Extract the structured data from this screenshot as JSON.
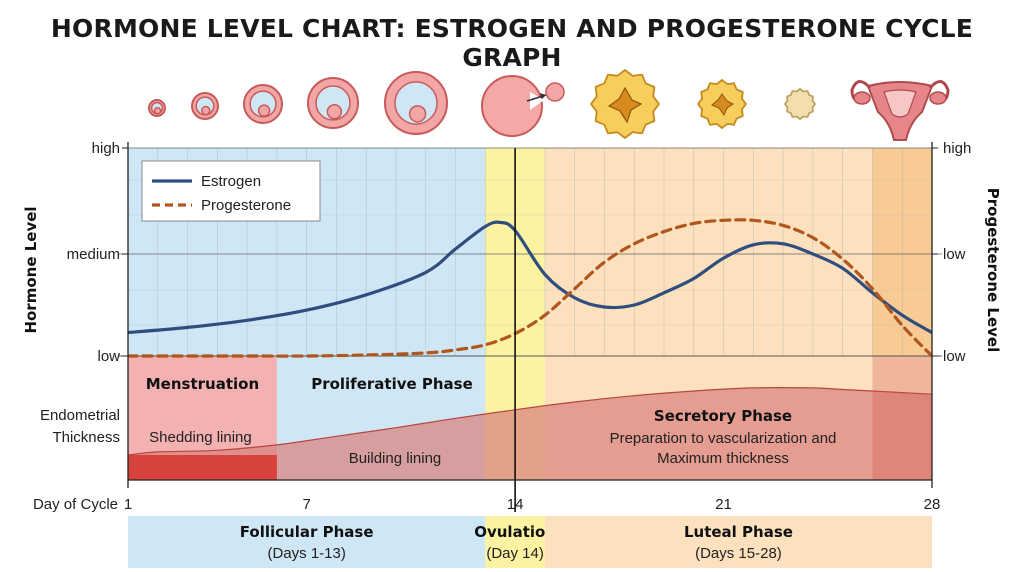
{
  "title": "HORMONE LEVEL CHART: ESTROGEN AND PROGESTERONE CYCLE GRAPH",
  "chart_data": {
    "type": "line",
    "title": "HORMONE LEVEL CHART: ESTROGEN AND PROGESTERONE CYCLE GRAPH",
    "xlabel": "Day of Cycle",
    "ylabel_left": "Hormone Level",
    "ylabel_right": "Progesterone Level",
    "xlim": [
      1,
      28
    ],
    "x_ticks": [
      "1",
      "7",
      "14",
      "21",
      "28"
    ],
    "y_ticks_left": [
      "low",
      "medium",
      "high"
    ],
    "y_ticks_right": [
      "low",
      "low",
      "high"
    ],
    "legend": {
      "position": "top-left",
      "entries": [
        "Estrogen",
        "Progesterone"
      ]
    },
    "series": [
      {
        "name": "Estrogen",
        "color": "#2f4e7e",
        "style": "solid",
        "x": [
          1,
          3,
          5,
          7,
          9,
          11,
          12,
          13,
          13.5,
          14,
          15,
          16,
          17,
          18,
          19,
          20,
          21,
          22,
          23,
          24,
          25,
          26,
          27,
          28
        ],
        "y": [
          0.23,
          0.28,
          0.35,
          0.45,
          0.6,
          0.82,
          1.05,
          1.27,
          1.31,
          1.23,
          0.8,
          0.57,
          0.48,
          0.5,
          0.62,
          0.76,
          0.96,
          1.09,
          1.1,
          1.0,
          0.86,
          0.62,
          0.4,
          0.23
        ]
      },
      {
        "name": "Progesterone",
        "color": "#b0561f",
        "style": "dashed",
        "x": [
          1,
          3,
          5,
          7,
          9,
          11,
          12,
          13,
          14,
          15,
          16,
          17,
          18,
          19,
          20,
          21,
          22,
          23,
          24,
          25,
          26,
          27,
          28
        ],
        "y": [
          0.0,
          0.0,
          0.0,
          0.0,
          0.01,
          0.03,
          0.06,
          0.11,
          0.22,
          0.4,
          0.66,
          0.92,
          1.1,
          1.22,
          1.3,
          1.33,
          1.33,
          1.28,
          1.16,
          0.95,
          0.66,
          0.3,
          0.0
        ]
      }
    ],
    "endometrium": {
      "label": "Endometrial\nThickness",
      "thickness": {
        "x": [
          1,
          2,
          4,
          6,
          8,
          10,
          12,
          14,
          16,
          18,
          20,
          22,
          24,
          25,
          26,
          27,
          28
        ],
        "y": [
          0.0,
          0.04,
          0.06,
          0.13,
          0.24,
          0.35,
          0.47,
          0.58,
          0.68,
          0.76,
          0.82,
          0.86,
          0.86,
          0.84,
          0.82,
          0.8,
          0.78
        ]
      },
      "phases": [
        {
          "name": "Menstruation",
          "desc": "Shedding lining",
          "start_day": 1,
          "end_day": 6,
          "color": "#f3b1b1"
        },
        {
          "name": "Proliferative Phase",
          "desc": "Building lining",
          "start_day": 6,
          "end_day": 13,
          "color": "#dcebf5"
        },
        {
          "name": "Secretory Phase",
          "desc": "Preparation to vascularization and\nMaximum thickness",
          "start_day": 15,
          "end_day": 28,
          "color": "#f9d3ae"
        }
      ]
    },
    "cycle_phases": [
      {
        "name": "Follicular Phase",
        "days": "(Days 1-13)",
        "start_day": 1,
        "end_day": 13,
        "color": "#cfe6f5"
      },
      {
        "name": "Ovulation",
        "days": "(Day 14)",
        "start_day": 13,
        "end_day": 15,
        "color": "#fbf3a1"
      },
      {
        "name": "Luteal Phase",
        "days": "(Days 15-28)",
        "start_day": 15,
        "end_day": 28,
        "color": "#fde0bd"
      }
    ],
    "ovulation_day": 14,
    "grid": true,
    "icons": [
      "follicle-icon",
      "follicle-icon",
      "follicle-icon",
      "follicle-icon",
      "follicle-icon",
      "ovulating-follicle-icon",
      "corpus-luteum-icon",
      "corpus-luteum-icon",
      "corpus-albicans-icon",
      "uterus-icon"
    ]
  }
}
